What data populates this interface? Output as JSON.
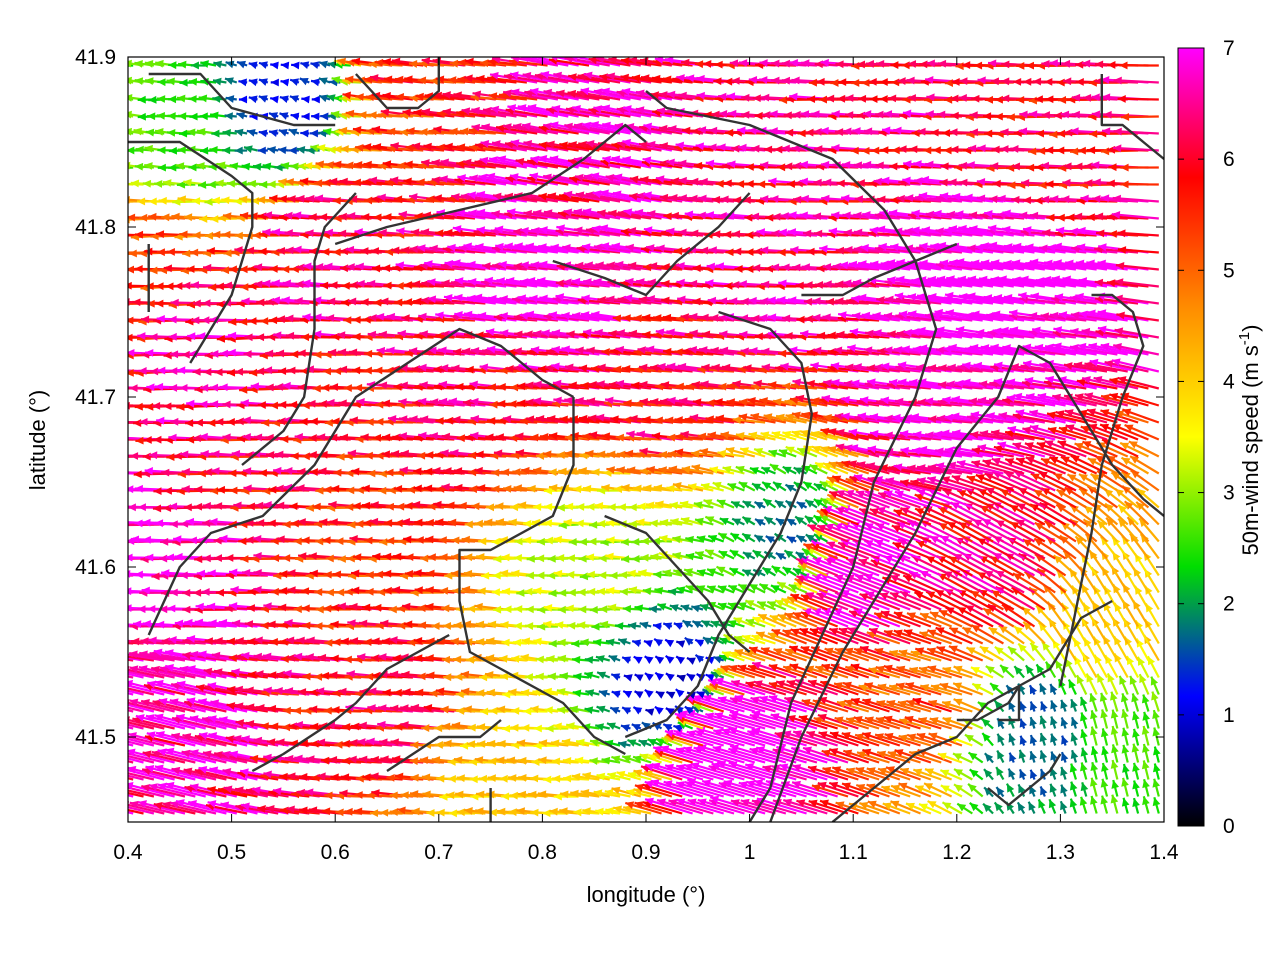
{
  "chart_data": {
    "type": "vector-field",
    "xlabel": "longitude (°)",
    "ylabel": "latitude (°)",
    "xlim": [
      0.4,
      1.4
    ],
    "ylim": [
      41.45,
      41.9
    ],
    "xticks": [
      {
        "value": 0.4,
        "label": "0.4"
      },
      {
        "value": 0.5,
        "label": "0.5"
      },
      {
        "value": 0.6,
        "label": "0.6"
      },
      {
        "value": 0.7,
        "label": "0.7"
      },
      {
        "value": 0.8,
        "label": "0.8"
      },
      {
        "value": 0.9,
        "label": "0.9"
      },
      {
        "value": 1.0,
        "label": "1"
      },
      {
        "value": 1.1,
        "label": "1.1"
      },
      {
        "value": 1.2,
        "label": "1.2"
      },
      {
        "value": 1.3,
        "label": "1.3"
      },
      {
        "value": 1.4,
        "label": "1.4"
      }
    ],
    "yticks": [
      {
        "value": 41.5,
        "label": "41.5"
      },
      {
        "value": 41.6,
        "label": "41.6"
      },
      {
        "value": 41.7,
        "label": "41.7"
      },
      {
        "value": 41.8,
        "label": "41.8"
      },
      {
        "value": 41.9,
        "label": "41.9"
      }
    ],
    "colorbar": {
      "label_main": "50m-wind speed (m s",
      "label_sup": "-1",
      "label_end": ")",
      "range": [
        0,
        7
      ],
      "ticks": [
        {
          "value": 0,
          "label": "0"
        },
        {
          "value": 1,
          "label": "1"
        },
        {
          "value": 2,
          "label": "2"
        },
        {
          "value": 3,
          "label": "3"
        },
        {
          "value": 4,
          "label": "4"
        },
        {
          "value": 5,
          "label": "5"
        },
        {
          "value": 6,
          "label": "6"
        },
        {
          "value": 7,
          "label": "7"
        }
      ],
      "stops": [
        "#000000",
        "#0000ff",
        "#00dd00",
        "#ffff00",
        "#ff8c00",
        "#ff0000",
        "#ff00ff"
      ]
    },
    "vector_grid": {
      "lon_step": 0.01,
      "lat_step": 0.01
    },
    "wind_regimes": [
      {
        "lon": 0.45,
        "lat": 41.86,
        "u": -2.6,
        "v": 0.2
      },
      {
        "lon": 0.55,
        "lat": 41.88,
        "u": -1.2,
        "v": 0.3
      },
      {
        "lon": 0.7,
        "lat": 41.88,
        "u": -5.5,
        "v": 0.5
      },
      {
        "lon": 0.85,
        "lat": 41.84,
        "u": -6.5,
        "v": 1.2
      },
      {
        "lon": 1.1,
        "lat": 41.87,
        "u": -6.2,
        "v": 0.2
      },
      {
        "lon": 1.3,
        "lat": 41.86,
        "u": -6.0,
        "v": 0.1
      },
      {
        "lon": 0.42,
        "lat": 41.77,
        "u": -5.5,
        "v": 0.0
      },
      {
        "lon": 0.5,
        "lat": 41.72,
        "u": -6.5,
        "v": 0.0
      },
      {
        "lon": 0.62,
        "lat": 41.78,
        "u": -6.2,
        "v": 0.3
      },
      {
        "lon": 0.82,
        "lat": 41.77,
        "u": -7.0,
        "v": 0.8
      },
      {
        "lon": 1.05,
        "lat": 41.77,
        "u": -6.4,
        "v": 0.3
      },
      {
        "lon": 1.25,
        "lat": 41.76,
        "u": -7.5,
        "v": 1.0
      },
      {
        "lon": 0.55,
        "lat": 41.66,
        "u": -6.0,
        "v": 0.2
      },
      {
        "lon": 0.75,
        "lat": 41.69,
        "u": -6.0,
        "v": 0.4
      },
      {
        "lon": 0.95,
        "lat": 41.71,
        "u": -6.0,
        "v": 0.6
      },
      {
        "lon": 1.2,
        "lat": 41.69,
        "u": -7.0,
        "v": 0.8
      },
      {
        "lon": 0.45,
        "lat": 41.6,
        "u": -7.0,
        "v": 0.1
      },
      {
        "lon": 0.65,
        "lat": 41.62,
        "u": -5.5,
        "v": 0.2
      },
      {
        "lon": 0.85,
        "lat": 41.6,
        "u": -3.2,
        "v": 0.1
      },
      {
        "lon": 0.93,
        "lat": 41.53,
        "u": -0.8,
        "v": 0.5
      },
      {
        "lon": 1.05,
        "lat": 41.62,
        "u": -1.5,
        "v": 1.0
      },
      {
        "lon": 1.12,
        "lat": 41.6,
        "u": -6.5,
        "v": 2.5
      },
      {
        "lon": 1.25,
        "lat": 41.6,
        "u": -5.5,
        "v": 3.0
      },
      {
        "lon": 1.35,
        "lat": 41.56,
        "u": -2.0,
        "v": 3.5
      },
      {
        "lon": 0.45,
        "lat": 41.5,
        "u": -6.5,
        "v": 1.6
      },
      {
        "lon": 0.65,
        "lat": 41.52,
        "u": -6.0,
        "v": 0.4
      },
      {
        "lon": 0.78,
        "lat": 41.47,
        "u": -4.0,
        "v": 0.2
      },
      {
        "lon": 1.0,
        "lat": 41.49,
        "u": -7.5,
        "v": 2.2
      },
      {
        "lon": 1.18,
        "lat": 41.52,
        "u": -5.0,
        "v": 1.5
      },
      {
        "lon": 1.28,
        "lat": 41.5,
        "u": -0.5,
        "v": 1.5
      },
      {
        "lon": 1.36,
        "lat": 41.49,
        "u": -0.6,
        "v": 2.5
      }
    ],
    "coastlines": [
      [
        [
          0.42,
          41.89
        ],
        [
          0.47,
          41.89
        ],
        [
          0.5,
          41.87
        ],
        [
          0.56,
          41.86
        ],
        [
          0.6,
          41.86
        ]
      ],
      [
        [
          0.4,
          41.85
        ],
        [
          0.45,
          41.85
        ],
        [
          0.5,
          41.83
        ],
        [
          0.52,
          41.82
        ],
        [
          0.52,
          41.8
        ],
        [
          0.51,
          41.78
        ],
        [
          0.5,
          41.76
        ],
        [
          0.48,
          41.74
        ],
        [
          0.46,
          41.72
        ]
      ],
      [
        [
          0.42,
          41.75
        ],
        [
          0.42,
          41.77
        ],
        [
          0.42,
          41.79
        ]
      ],
      [
        [
          0.51,
          41.66
        ],
        [
          0.55,
          41.68
        ],
        [
          0.57,
          41.7
        ],
        [
          0.58,
          41.74
        ],
        [
          0.58,
          41.78
        ],
        [
          0.59,
          41.8
        ],
        [
          0.62,
          41.82
        ]
      ],
      [
        [
          0.6,
          41.79
        ],
        [
          0.65,
          41.8
        ],
        [
          0.72,
          41.81
        ],
        [
          0.79,
          41.82
        ],
        [
          0.84,
          41.84
        ],
        [
          0.88,
          41.86
        ],
        [
          0.9,
          41.85
        ]
      ],
      [
        [
          0.7,
          41.9
        ],
        [
          0.7,
          41.88
        ],
        [
          0.68,
          41.87
        ],
        [
          0.65,
          41.87
        ],
        [
          0.62,
          41.89
        ]
      ],
      [
        [
          0.9,
          41.88
        ],
        [
          0.92,
          41.87
        ],
        [
          1.0,
          41.86
        ],
        [
          1.08,
          41.84
        ],
        [
          1.13,
          41.81
        ],
        [
          1.16,
          41.78
        ],
        [
          1.18,
          41.74
        ],
        [
          1.16,
          41.7
        ],
        [
          1.12,
          41.65
        ],
        [
          1.1,
          41.6
        ],
        [
          1.07,
          41.56
        ],
        [
          1.04,
          41.52
        ],
        [
          1.02,
          41.47
        ],
        [
          1.0,
          41.45
        ]
      ],
      [
        [
          0.81,
          41.78
        ],
        [
          0.86,
          41.77
        ],
        [
          0.9,
          41.76
        ],
        [
          0.93,
          41.78
        ],
        [
          0.97,
          41.8
        ],
        [
          1.0,
          41.82
        ]
      ],
      [
        [
          0.97,
          41.75
        ],
        [
          1.02,
          41.74
        ],
        [
          1.05,
          41.72
        ],
        [
          1.06,
          41.69
        ],
        [
          1.05,
          41.65
        ],
        [
          1.03,
          41.62
        ],
        [
          1.0,
          41.59
        ],
        [
          0.97,
          41.56
        ],
        [
          0.95,
          41.53
        ],
        [
          0.92,
          41.51
        ],
        [
          0.88,
          41.5
        ]
      ],
      [
        [
          0.42,
          41.56
        ],
        [
          0.45,
          41.6
        ],
        [
          0.48,
          41.62
        ],
        [
          0.53,
          41.63
        ],
        [
          0.58,
          41.66
        ],
        [
          0.62,
          41.7
        ],
        [
          0.67,
          41.72
        ],
        [
          0.72,
          41.74
        ],
        [
          0.76,
          41.73
        ],
        [
          0.8,
          41.71
        ],
        [
          0.83,
          41.7
        ]
      ],
      [
        [
          0.83,
          41.7
        ],
        [
          0.83,
          41.66
        ],
        [
          0.81,
          41.63
        ],
        [
          0.75,
          41.61
        ],
        [
          0.72,
          41.61
        ],
        [
          0.72,
          41.58
        ],
        [
          0.73,
          41.55
        ],
        [
          0.76,
          41.54
        ],
        [
          0.82,
          41.52
        ],
        [
          0.85,
          41.5
        ],
        [
          0.88,
          41.49
        ]
      ],
      [
        [
          0.52,
          41.48
        ],
        [
          0.55,
          41.49
        ],
        [
          0.6,
          41.51
        ],
        [
          0.62,
          41.52
        ],
        [
          0.65,
          41.54
        ],
        [
          0.68,
          41.55
        ],
        [
          0.71,
          41.56
        ]
      ],
      [
        [
          0.65,
          41.48
        ],
        [
          0.7,
          41.5
        ],
        [
          0.74,
          41.5
        ],
        [
          0.76,
          41.51
        ]
      ],
      [
        [
          0.75,
          41.47
        ],
        [
          0.75,
          41.45
        ]
      ],
      [
        [
          1.05,
          41.76
        ],
        [
          1.09,
          41.76
        ],
        [
          1.12,
          41.77
        ],
        [
          1.16,
          41.78
        ],
        [
          1.2,
          41.79
        ]
      ],
      [
        [
          1.02,
          41.45
        ],
        [
          1.05,
          41.5
        ],
        [
          1.09,
          41.55
        ],
        [
          1.12,
          41.58
        ],
        [
          1.16,
          41.62
        ],
        [
          1.2,
          41.67
        ],
        [
          1.24,
          41.7
        ],
        [
          1.26,
          41.73
        ],
        [
          1.29,
          41.72
        ],
        [
          1.31,
          41.7
        ],
        [
          1.33,
          41.68
        ],
        [
          1.35,
          41.66
        ],
        [
          1.38,
          41.64
        ],
        [
          1.4,
          41.63
        ]
      ],
      [
        [
          1.08,
          41.45
        ],
        [
          1.12,
          41.47
        ],
        [
          1.16,
          41.49
        ],
        [
          1.2,
          41.5
        ],
        [
          1.23,
          41.52
        ],
        [
          1.26,
          41.53
        ],
        [
          1.29,
          41.54
        ],
        [
          1.32,
          41.57
        ],
        [
          1.35,
          41.58
        ]
      ],
      [
        [
          1.2,
          41.51
        ],
        [
          1.22,
          41.51
        ],
        [
          1.25,
          41.52
        ],
        [
          1.26,
          41.53
        ],
        [
          1.26,
          41.51
        ],
        [
          1.24,
          41.51
        ]
      ],
      [
        [
          1.23,
          41.47
        ],
        [
          1.25,
          41.46
        ],
        [
          1.27,
          41.47
        ],
        [
          1.29,
          41.48
        ],
        [
          1.3,
          41.49
        ]
      ],
      [
        [
          1.34,
          41.89
        ],
        [
          1.34,
          41.86
        ],
        [
          1.36,
          41.86
        ],
        [
          1.38,
          41.85
        ],
        [
          1.4,
          41.84
        ]
      ],
      [
        [
          1.33,
          41.76
        ],
        [
          1.35,
          41.76
        ],
        [
          1.37,
          41.75
        ],
        [
          1.38,
          41.73
        ],
        [
          1.36,
          41.7
        ],
        [
          1.34,
          41.66
        ],
        [
          1.33,
          41.62
        ],
        [
          1.32,
          41.59
        ],
        [
          1.31,
          41.56
        ],
        [
          1.3,
          41.53
        ]
      ],
      [
        [
          0.86,
          41.63
        ],
        [
          0.9,
          41.62
        ],
        [
          0.93,
          41.6
        ],
        [
          0.96,
          41.58
        ],
        [
          0.98,
          41.56
        ],
        [
          1.0,
          41.55
        ]
      ]
    ]
  }
}
